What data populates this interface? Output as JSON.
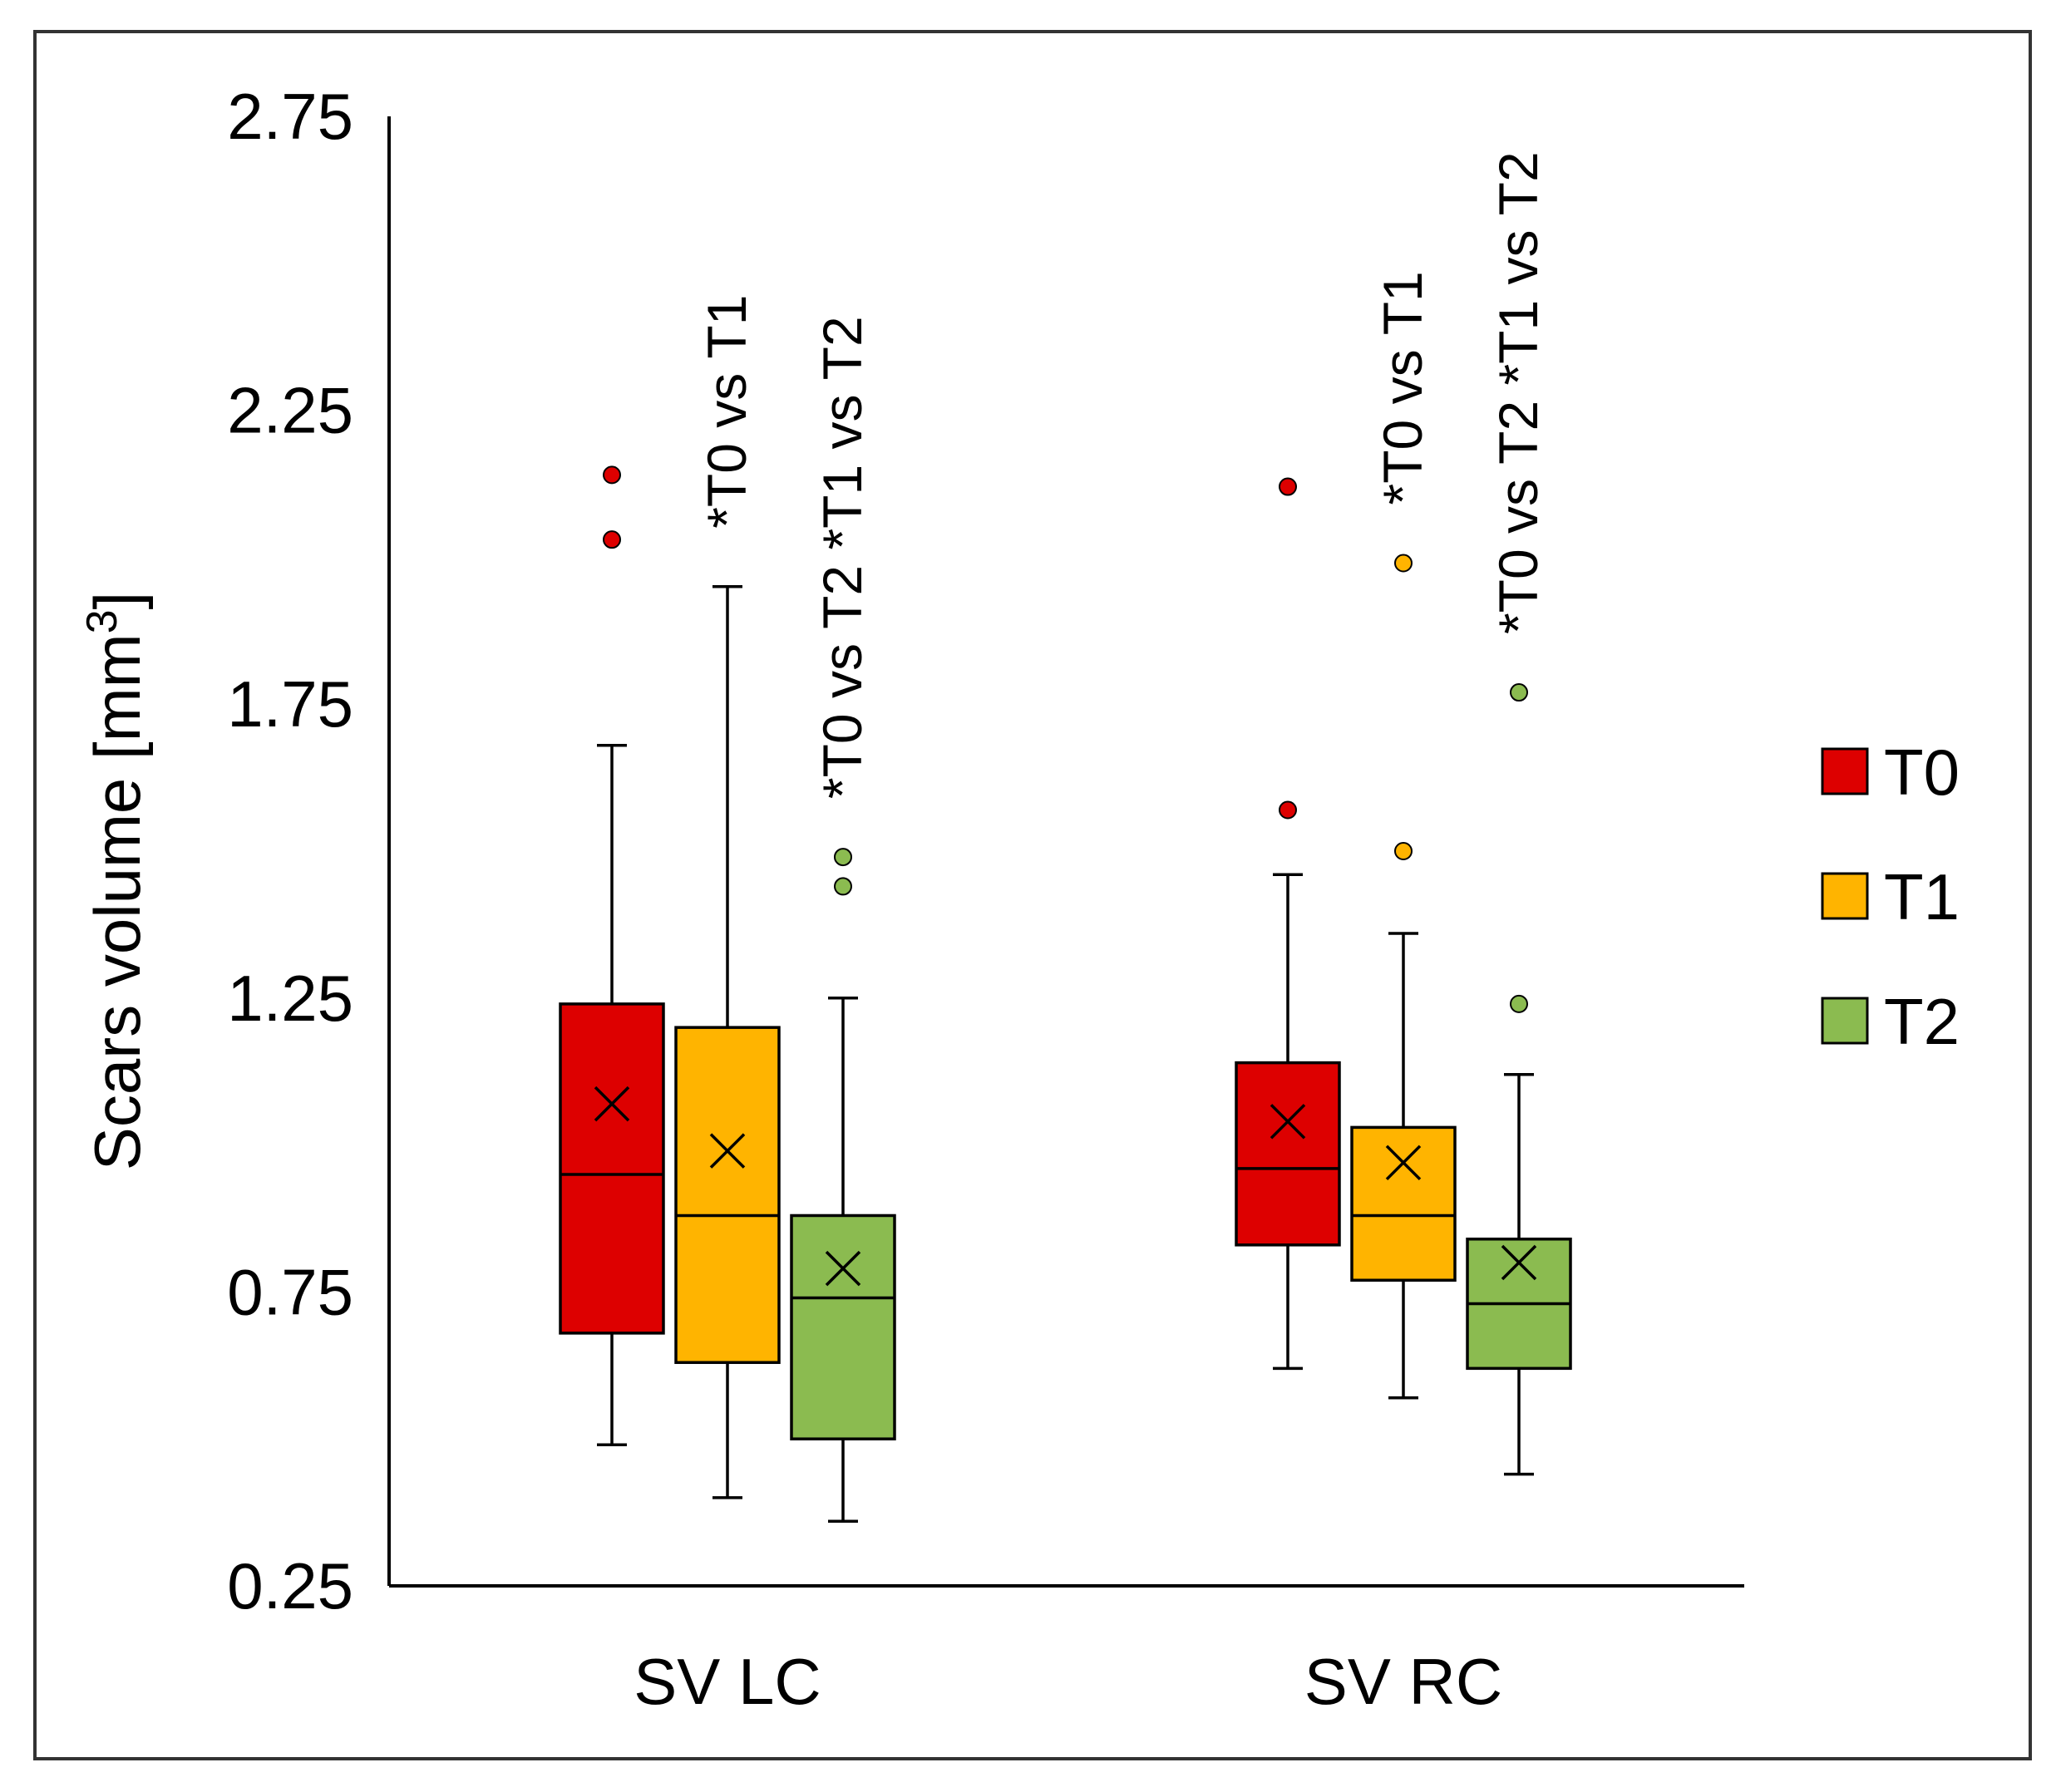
{
  "chart_data": {
    "type": "box",
    "title": "",
    "xlabel": "",
    "ylabel": "Scars volume [mm",
    "ylabel_superscript": "3",
    "ylabel_close": "]",
    "ylim": [
      0.25,
      2.75
    ],
    "yticks": [
      0.25,
      0.75,
      1.25,
      1.75,
      2.25,
      2.75
    ],
    "ytick_labels": [
      "0.25",
      "0.75",
      "1.25",
      "1.75",
      "2.25",
      "2.75"
    ],
    "legend_position": "right",
    "grid": false,
    "categories": [
      "SV LC",
      "SV RC"
    ],
    "series": [
      {
        "name": "T0",
        "color": "#dd0000",
        "boxes": [
          {
            "category": "SV LC",
            "whisker_low": 0.49,
            "q1": 0.68,
            "median": 0.95,
            "q3": 1.24,
            "mean": 1.07,
            "whisker_high": 1.68,
            "outliers": [
              2.03,
              2.14
            ]
          },
          {
            "category": "SV RC",
            "whisker_low": 0.62,
            "q1": 0.83,
            "median": 0.96,
            "q3": 1.14,
            "mean": 1.04,
            "whisker_high": 1.46,
            "outliers": [
              1.57,
              2.12
            ]
          }
        ]
      },
      {
        "name": "T1",
        "color": "#ffb400",
        "boxes": [
          {
            "category": "SV LC",
            "whisker_low": 0.4,
            "q1": 0.63,
            "median": 0.88,
            "q3": 1.2,
            "mean": 0.99,
            "whisker_high": 1.95,
            "outliers": []
          },
          {
            "category": "SV RC",
            "whisker_low": 0.57,
            "q1": 0.77,
            "median": 0.88,
            "q3": 1.03,
            "mean": 0.97,
            "whisker_high": 1.36,
            "outliers": [
              1.5,
              1.99
            ]
          }
        ]
      },
      {
        "name": "T2",
        "color": "#8bbb50",
        "boxes": [
          {
            "category": "SV LC",
            "whisker_low": 0.36,
            "q1": 0.5,
            "median": 0.74,
            "q3": 0.88,
            "mean": 0.79,
            "whisker_high": 1.25,
            "outliers": [
              1.44,
              1.49
            ]
          },
          {
            "category": "SV RC",
            "whisker_low": 0.44,
            "q1": 0.62,
            "median": 0.73,
            "q3": 0.84,
            "mean": 0.8,
            "whisker_high": 1.12,
            "outliers": [
              1.24,
              1.77
            ]
          }
        ]
      }
    ],
    "annotations": [
      {
        "category": "SV LC",
        "series": "T1",
        "text": "*T0 vs T1"
      },
      {
        "category": "SV LC",
        "series": "T2",
        "text": "*T0 vs T2 *T1 vs T2"
      },
      {
        "category": "SV RC",
        "series": "T1",
        "text": "*T0 vs T1"
      },
      {
        "category": "SV RC",
        "series": "T2",
        "text": "*T0 vs T2 *T1 vs T2"
      }
    ]
  }
}
